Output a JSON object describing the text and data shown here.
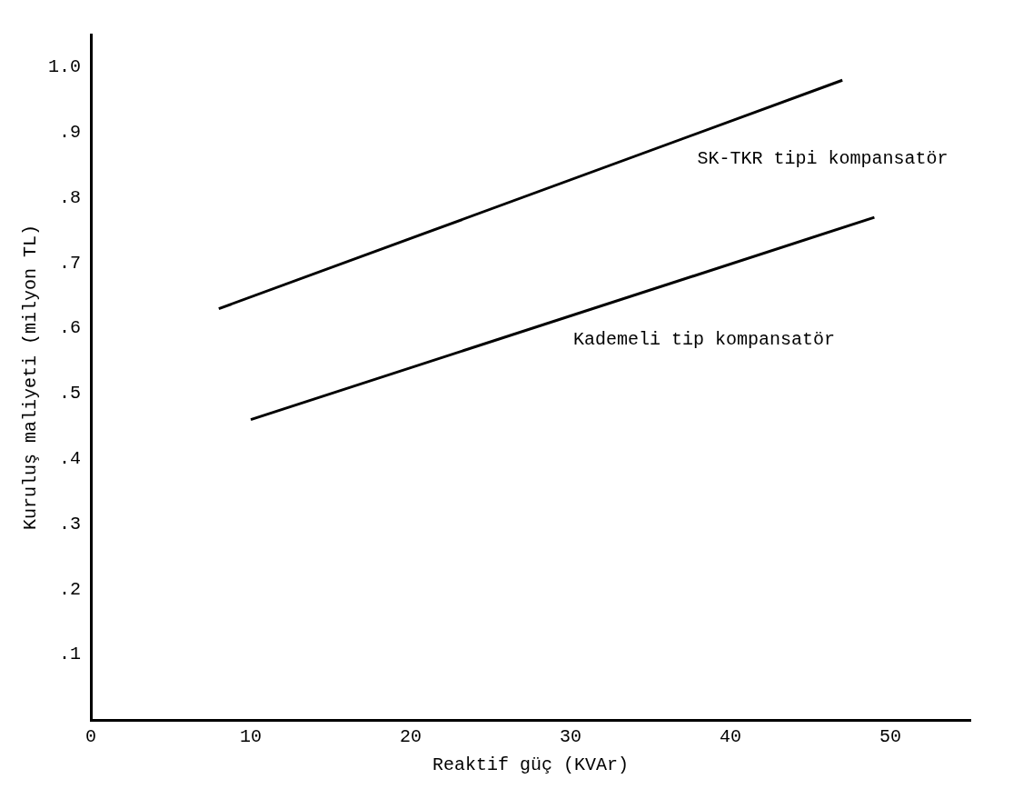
{
  "chart_data": {
    "type": "line",
    "xlabel": "Reaktif güç (KVAr)",
    "ylabel": "Kuruluş maliyeti (milyon TL)",
    "xlim": [
      0,
      55
    ],
    "xticks": [
      0,
      10,
      20,
      30,
      40,
      50
    ],
    "ylim": [
      0,
      1.05
    ],
    "yticks": [
      {
        "value": 0.1,
        "label": ".1"
      },
      {
        "value": 0.2,
        "label": ".2"
      },
      {
        "value": 0.3,
        "label": ".3"
      },
      {
        "value": 0.4,
        "label": ".4"
      },
      {
        "value": 0.5,
        "label": ".5"
      },
      {
        "value": 0.6,
        "label": ".6"
      },
      {
        "value": 0.7,
        "label": ".7"
      },
      {
        "value": 0.8,
        "label": ".8"
      },
      {
        "value": 0.9,
        "label": ".9"
      },
      {
        "value": 1.0,
        "label": "1.0"
      }
    ],
    "series": [
      {
        "name": "SK-TKR tipi kompansatör",
        "color": "#000000",
        "x": [
          8,
          47
        ],
        "values": [
          0.63,
          0.98
        ]
      },
      {
        "name": "Kademeli tip kompansatör",
        "color": "#000000",
        "x": [
          10,
          49
        ],
        "values": [
          0.46,
          0.77
        ]
      }
    ],
    "grid": false,
    "legend": false,
    "marker": "none",
    "line_style": "solid"
  }
}
